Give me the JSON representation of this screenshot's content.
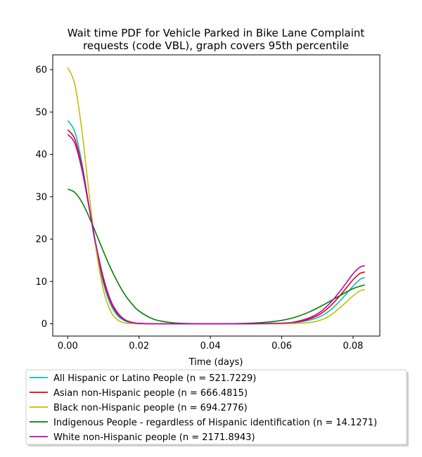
{
  "chart_data": {
    "type": "line",
    "title_lines": [
      "Wait time PDF for Vehicle Parked in Bike Lane Complaint",
      "requests (code VBL), graph covers 95th percentile"
    ],
    "xlabel": "Time (days)",
    "ylabel": "",
    "xlim": [
      -0.0042,
      0.0875
    ],
    "ylim": [
      -2.9,
      63.5
    ],
    "xticks": [
      0.0,
      0.02,
      0.04,
      0.06,
      0.08
    ],
    "xtick_labels": [
      "0.00",
      "0.02",
      "0.04",
      "0.06",
      "0.08"
    ],
    "yticks": [
      0,
      10,
      20,
      30,
      40,
      50,
      60
    ],
    "ytick_labels": [
      "0",
      "10",
      "20",
      "30",
      "40",
      "50",
      "60"
    ],
    "grid": false,
    "legend_position": "below",
    "series": [
      {
        "name": "All Hispanic or Latino People (n = 521.7229)",
        "color": "#00bfbf",
        "x": [
          0,
          0.002,
          0.004,
          0.006,
          0.008,
          0.01,
          0.012,
          0.014,
          0.016,
          0.018,
          0.02,
          0.024,
          0.028,
          0.032,
          0.04,
          0.05,
          0.06,
          0.064,
          0.068,
          0.071,
          0.074,
          0.077,
          0.08,
          0.082,
          0.0833
        ],
        "y": [
          48,
          45.3,
          37.9,
          27.6,
          17.5,
          9.6,
          4.6,
          1.9,
          0.7,
          0.2,
          0.05,
          0,
          0,
          0,
          0,
          0,
          0.1,
          0.3,
          0.9,
          1.8,
          3.5,
          6.0,
          8.9,
          10.5,
          10.9
        ]
      },
      {
        "name": "Asian non-Hispanic people (n = 666.4815)",
        "color": "#e60000",
        "x": [
          0,
          0.002,
          0.004,
          0.006,
          0.008,
          0.01,
          0.012,
          0.014,
          0.016,
          0.018,
          0.02,
          0.024,
          0.028,
          0.032,
          0.04,
          0.05,
          0.06,
          0.064,
          0.068,
          0.071,
          0.074,
          0.077,
          0.08,
          0.082,
          0.0833
        ],
        "y": [
          45.8,
          43.6,
          37.0,
          27.6,
          18.1,
          10.3,
          5.2,
          2.3,
          0.9,
          0.3,
          0.1,
          0,
          0,
          0,
          0,
          0,
          0.1,
          0.4,
          1.2,
          2.4,
          4.5,
          7.3,
          10.4,
          11.9,
          12.2
        ]
      },
      {
        "name": "Black non-Hispanic people (n = 694.2776)",
        "color": "#bfbf00",
        "x": [
          0,
          0.002,
          0.004,
          0.006,
          0.008,
          0.01,
          0.012,
          0.014,
          0.016,
          0.018,
          0.02,
          0.024,
          0.028,
          0.032,
          0.04,
          0.05,
          0.06,
          0.064,
          0.068,
          0.071,
          0.074,
          0.077,
          0.08,
          0.082,
          0.0833
        ],
        "y": [
          60.5,
          56.5,
          45.5,
          30.7,
          17.3,
          8.0,
          3.0,
          0.9,
          0.2,
          0.05,
          0,
          0,
          0,
          0,
          0,
          0,
          0,
          0.1,
          0.3,
          0.9,
          2.2,
          4.3,
          6.6,
          7.8,
          8.0
        ]
      },
      {
        "name": "Indigenous People - regardless of Hispanic identification (n = 14.1271)",
        "color": "#008000",
        "x": [
          0,
          0.002,
          0.004,
          0.006,
          0.008,
          0.01,
          0.012,
          0.014,
          0.016,
          0.018,
          0.02,
          0.024,
          0.028,
          0.032,
          0.04,
          0.05,
          0.056,
          0.06,
          0.064,
          0.068,
          0.072,
          0.076,
          0.08,
          0.0833
        ],
        "y": [
          31.8,
          31.0,
          28.7,
          25.2,
          21.2,
          17.1,
          13.2,
          9.8,
          6.9,
          4.7,
          3.0,
          1.1,
          0.4,
          0.1,
          0,
          0.1,
          0.4,
          0.8,
          1.6,
          2.9,
          4.6,
          6.5,
          8.3,
          9.2
        ]
      },
      {
        "name": "White non-Hispanic people (n = 2171.8943)",
        "color": "#bf00bf",
        "x": [
          0,
          0.002,
          0.004,
          0.006,
          0.008,
          0.01,
          0.012,
          0.014,
          0.016,
          0.018,
          0.02,
          0.024,
          0.028,
          0.032,
          0.04,
          0.05,
          0.06,
          0.064,
          0.068,
          0.071,
          0.074,
          0.077,
          0.08,
          0.082,
          0.0833
        ],
        "y": [
          44.7,
          42.6,
          36.3,
          27.4,
          18.4,
          10.9,
          5.6,
          2.6,
          1.0,
          0.35,
          0.1,
          0,
          0,
          0,
          0,
          0,
          0.15,
          0.5,
          1.5,
          2.9,
          5.3,
          8.4,
          11.8,
          13.4,
          13.7
        ]
      }
    ]
  }
}
